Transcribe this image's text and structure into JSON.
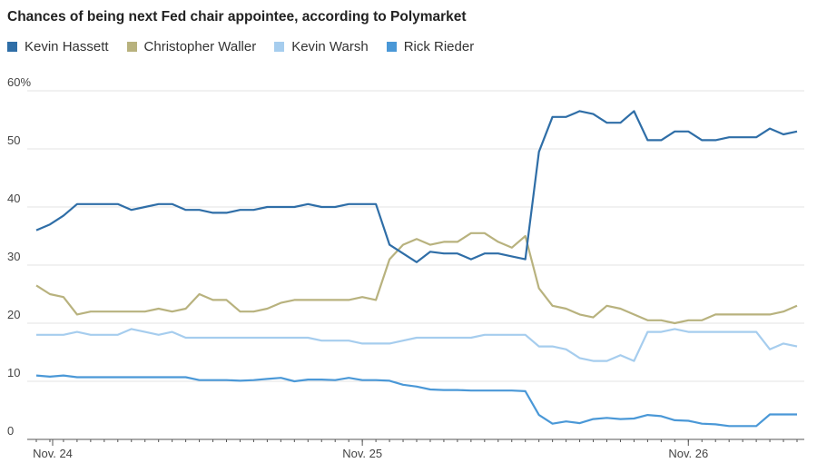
{
  "chart_data": {
    "type": "line",
    "title": "Chances of being next Fed chair appointee, according to Polymarket",
    "xlabel": "",
    "ylabel": "",
    "ylim": [
      0,
      60
    ],
    "yticks": [
      {
        "v": 0,
        "label": "0"
      },
      {
        "v": 10,
        "label": "10"
      },
      {
        "v": 20,
        "label": "20"
      },
      {
        "v": 30,
        "label": "30"
      },
      {
        "v": 40,
        "label": "40"
      },
      {
        "v": 50,
        "label": "50"
      },
      {
        "v": 60,
        "label": "60%"
      }
    ],
    "xticks": [
      {
        "i": 0,
        "label": "Nov. 24"
      },
      {
        "i": 24,
        "label": "Nov. 25"
      },
      {
        "i": 48,
        "label": "Nov. 26"
      }
    ],
    "n_points": 57,
    "legend_position": "top-left",
    "grid": true,
    "series": [
      {
        "name": "Kevin Hassett",
        "color": "#2f6ea7",
        "values": [
          36,
          37,
          38.5,
          40.5,
          40.5,
          40.5,
          40.5,
          39.5,
          40,
          40.5,
          40.5,
          39.5,
          39.5,
          39,
          39,
          39.5,
          39.5,
          40,
          40,
          40,
          40.5,
          40,
          40,
          40.5,
          40.5,
          40.5,
          33.5,
          32,
          30.5,
          32.3,
          32,
          32,
          31,
          32,
          32,
          31.5,
          31,
          49.5,
          55.5,
          55.5,
          56.5,
          56,
          54.5,
          54.5,
          56.5,
          51.5,
          51.5,
          53,
          53,
          51.5,
          51.5,
          52,
          52,
          52,
          53.5,
          52.5,
          53
        ]
      },
      {
        "name": "Christopher Waller",
        "color": "#b8b27e",
        "values": [
          26.5,
          25,
          24.5,
          21.5,
          22,
          22,
          22,
          22,
          22,
          22.5,
          22,
          22.5,
          25,
          24,
          24,
          22,
          22,
          22.5,
          23.5,
          24,
          24,
          24,
          24,
          24,
          24.5,
          24,
          31,
          33.5,
          34.5,
          33.5,
          34,
          34,
          35.5,
          35.5,
          34,
          33,
          35,
          26,
          23,
          22.5,
          21.5,
          21,
          23,
          22.5,
          21.5,
          20.5,
          20.5,
          20,
          20.5,
          20.5,
          21.5,
          21.5,
          21.5,
          21.5,
          21.5,
          22,
          23
        ]
      },
      {
        "name": "Kevin Warsh",
        "color": "#a6cdee",
        "values": [
          18,
          18,
          18,
          18.5,
          18,
          18,
          18,
          19,
          18.5,
          18,
          18.5,
          17.5,
          17.5,
          17.5,
          17.5,
          17.5,
          17.5,
          17.5,
          17.5,
          17.5,
          17.5,
          17,
          17,
          17,
          16.5,
          16.5,
          16.5,
          17,
          17.5,
          17.5,
          17.5,
          17.5,
          17.5,
          18,
          18,
          18,
          18,
          16,
          16,
          15.5,
          14,
          13.5,
          13.5,
          14.5,
          13.5,
          18.5,
          18.5,
          19,
          18.5,
          18.5,
          18.5,
          18.5,
          18.5,
          18.5,
          15.5,
          16.5,
          16
        ]
      },
      {
        "name": "Rick Rieder",
        "color": "#4a98d7",
        "values": [
          11,
          10.8,
          11,
          10.7,
          10.7,
          10.7,
          10.7,
          10.7,
          10.7,
          10.7,
          10.7,
          10.7,
          10.2,
          10.2,
          10.2,
          10.1,
          10.2,
          10.4,
          10.6,
          10,
          10.3,
          10.3,
          10.2,
          10.6,
          10.2,
          10.2,
          10.1,
          9.4,
          9.1,
          8.6,
          8.5,
          8.5,
          8.4,
          8.4,
          8.4,
          8.4,
          8.3,
          4.2,
          2.7,
          3.1,
          2.8,
          3.5,
          3.7,
          3.5,
          3.6,
          4.2,
          4,
          3.3,
          3.2,
          2.7,
          2.6,
          2.3,
          2.3,
          2.3,
          4.3,
          4.3,
          4.3
        ]
      }
    ]
  }
}
